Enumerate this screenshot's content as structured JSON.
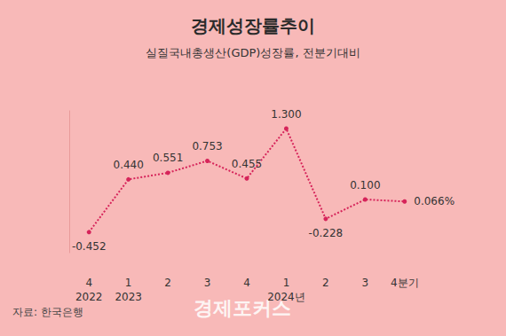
{
  "chart_data": {
    "type": "line",
    "title": "경제성장률추이",
    "subtitle": "실질국내총생산(GDP)성장률, 전분기대비",
    "annotations": [
      "자료: 한국은행",
      "경제포커스"
    ],
    "categories": [
      "4\n2022",
      "1\n2023",
      "2",
      "3",
      "4",
      "1\n2024년",
      "2",
      "3",
      "4분기"
    ],
    "values": [
      -0.452,
      0.44,
      0.551,
      0.753,
      0.455,
      1.3,
      -0.228,
      0.1,
      0.066
    ],
    "value_labels": [
      "-0.452",
      "0.440",
      "0.551",
      "0.753",
      "0.455",
      "1.300",
      "-0.228",
      "0.100",
      "0.066%"
    ],
    "color": "#d6245a",
    "ylim": [
      -0.8,
      1.6
    ],
    "grid": false,
    "data_labels": true,
    "tick_labels": "x",
    "marker": "circle",
    "line_style": "dotted"
  }
}
